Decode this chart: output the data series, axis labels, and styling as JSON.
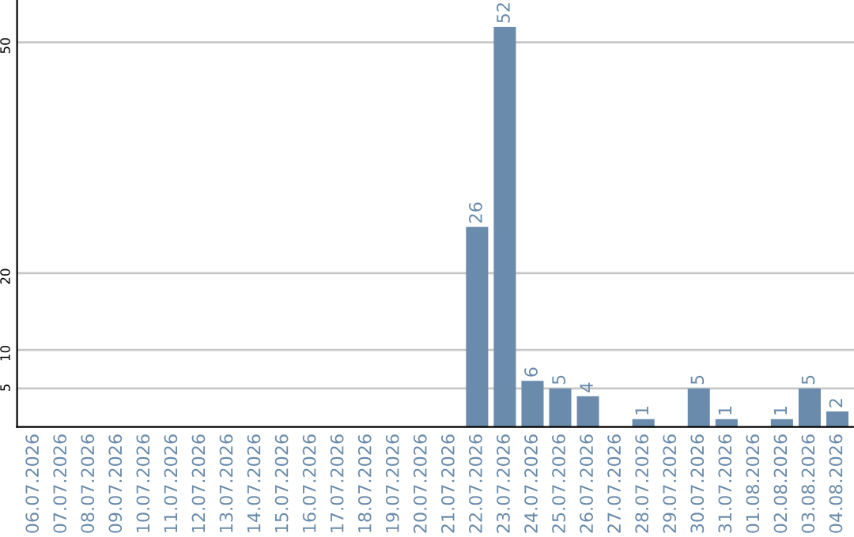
{
  "chart_data": {
    "type": "bar",
    "categories": [
      "06.07.2026",
      "07.07.2026",
      "08.07.2026",
      "09.07.2026",
      "10.07.2026",
      "11.07.2026",
      "12.07.2026",
      "13.07.2026",
      "14.07.2026",
      "15.07.2026",
      "16.07.2026",
      "17.07.2026",
      "18.07.2026",
      "19.07.2026",
      "20.07.2026",
      "21.07.2026",
      "22.07.2026",
      "23.07.2026",
      "24.07.2026",
      "25.07.2026",
      "26.07.2026",
      "27.07.2026",
      "28.07.2026",
      "29.07.2026",
      "30.07.2026",
      "31.07.2026",
      "01.08.2026",
      "02.08.2026",
      "03.08.2026",
      "04.08.2026"
    ],
    "values": [
      0,
      0,
      0,
      0,
      0,
      0,
      0,
      0,
      0,
      0,
      0,
      0,
      0,
      0,
      0,
      0,
      26,
      52,
      6,
      5,
      4,
      0,
      1,
      0,
      5,
      1,
      0,
      1,
      5,
      2
    ],
    "value_labels": [
      null,
      null,
      null,
      null,
      null,
      null,
      null,
      null,
      null,
      null,
      null,
      null,
      null,
      null,
      null,
      null,
      "26",
      "52",
      "6",
      "5",
      "4",
      null,
      "1",
      null,
      "5",
      "1",
      null,
      "1",
      "5",
      "2"
    ],
    "color": "#6a8bab",
    "ylim": [
      0,
      55.5
    ],
    "yticks": [
      5,
      10,
      20,
      50
    ],
    "grid": "y"
  }
}
